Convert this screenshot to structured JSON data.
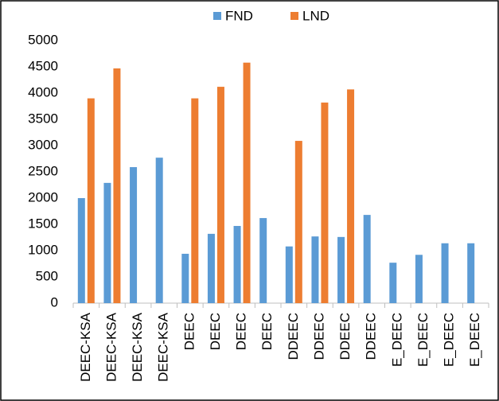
{
  "chart_data": {
    "type": "bar",
    "categories": [
      "DEEC-KSA",
      "DEEC-KSA",
      "DEEC-KSA",
      "DEEC-KSA",
      "DEEC",
      "DEEC",
      "DEEC",
      "DEEC",
      "DDEEC",
      "DDEEC",
      "DDEEC",
      "DDEEC",
      "E_DEEC",
      "E_DEEC",
      "E_DEEC",
      "E_DEEC"
    ],
    "series": [
      {
        "name": "FND",
        "color": "#5b9bd5",
        "values": [
          2000,
          2290,
          2590,
          2770,
          940,
          1320,
          1470,
          1620,
          1080,
          1270,
          1260,
          1680,
          770,
          920,
          1140,
          1140
        ]
      },
      {
        "name": "LND",
        "color": "#ed7d31",
        "values": [
          3900,
          4470,
          null,
          null,
          3900,
          4120,
          4580,
          null,
          3090,
          3820,
          4070,
          null,
          null,
          null,
          null,
          null
        ]
      }
    ],
    "ylim": [
      0,
      5000
    ],
    "yticks": [
      0,
      500,
      1000,
      1500,
      2000,
      2500,
      3000,
      3500,
      4000,
      4500,
      5000
    ],
    "legend": "top"
  }
}
